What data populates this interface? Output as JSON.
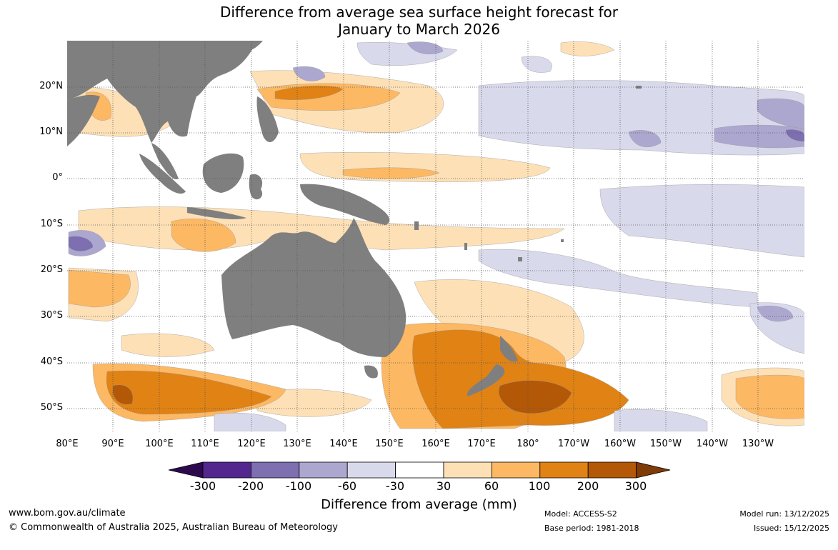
{
  "title": {
    "line1": "Difference from average sea surface height forecast for",
    "line2": "January to March 2026"
  },
  "map": {
    "region": "Indo-Pacific",
    "lat_labels": [
      "20°N",
      "10°N",
      "0°",
      "10°S",
      "20°S",
      "30°S",
      "40°S",
      "50°S"
    ],
    "lon_labels": [
      "80°E",
      "90°E",
      "100°E",
      "110°E",
      "120°E",
      "130°E",
      "140°E",
      "150°E",
      "160°E",
      "170°E",
      "180°",
      "170°W",
      "160°W",
      "150°W",
      "140°W",
      "130°W"
    ],
    "land_color": "#7f7f7f",
    "ocean_neutral_color": "#ffffff"
  },
  "colorbar": {
    "title": "Difference from average (mm)",
    "ticks": [
      "-300",
      "-200",
      "-100",
      "-60",
      "-30",
      "30",
      "60",
      "100",
      "200",
      "300"
    ],
    "colors": [
      "#2d0a4e",
      "#54278f",
      "#7d6fb0",
      "#aca7cf",
      "#d9d9ec",
      "#ffffff",
      "#fee0b6",
      "#fdb863",
      "#e08214",
      "#b35806",
      "#7f3b08"
    ]
  },
  "footer": {
    "website": "www.bom.gov.au/climate",
    "copyright": "© Commonwealth of Australia 2025, Australian Bureau of Meteorology",
    "model": "Model: ACCESS-S2",
    "base_period": "Base period: 1981-2018",
    "model_run": "Model run: 13/12/2025",
    "issued": "Issued: 15/12/2025"
  }
}
